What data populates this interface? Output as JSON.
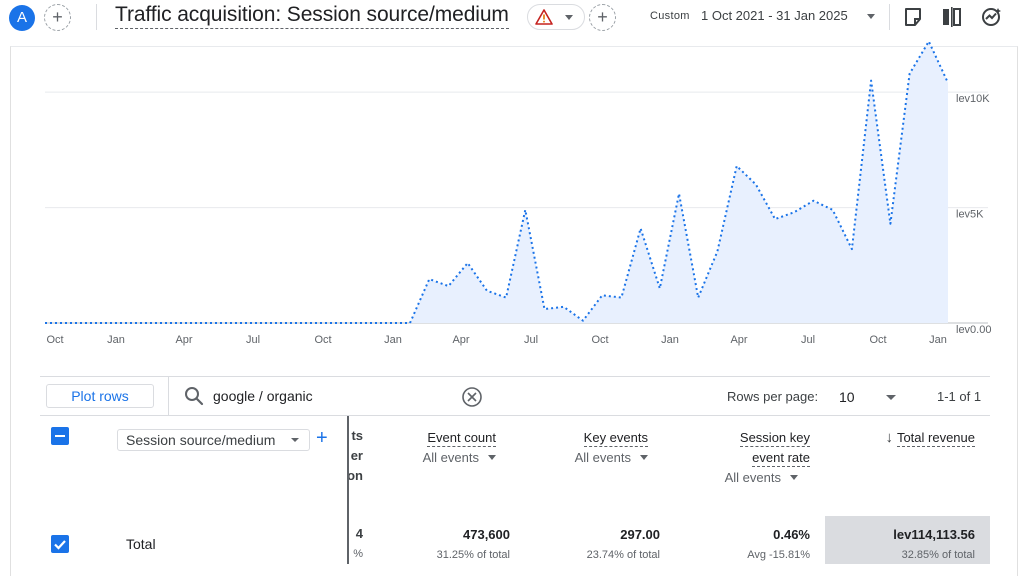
{
  "header": {
    "avatar_letter": "A",
    "add_comparison_glyph": "+",
    "title": "Traffic acquisition: Session source/medium",
    "add_glyph": "+",
    "date_mode": "Custom",
    "date_range": "1 Oct 2021 - 31 Jan 2025",
    "icons": [
      "warning-icon",
      "share-icon",
      "compare-icon",
      "insights-icon"
    ]
  },
  "chart_data": {
    "type": "area",
    "y_tick_labels": [
      "lev0.00",
      "lev5K",
      "lev10K"
    ],
    "ylim": [
      0,
      12000
    ],
    "x_tick_labels": [
      "Oct",
      "Jan",
      "Apr",
      "Jul",
      "Oct",
      "Jan",
      "Apr",
      "Jul",
      "Oct",
      "Jan",
      "Apr",
      "Jul",
      "Oct",
      "Jan"
    ],
    "series": [
      {
        "line_color": "#1a73e8",
        "fill_color": "#e8f0fe",
        "values": [
          0,
          0,
          0,
          0,
          0,
          0,
          0,
          0,
          0,
          0,
          0,
          0,
          0,
          0,
          0,
          0,
          0,
          0,
          0,
          0,
          1900,
          1600,
          2600,
          1400,
          1100,
          4900,
          600,
          700,
          100,
          1200,
          1100,
          4100,
          1500,
          5600,
          1100,
          3100,
          6800,
          6000,
          4500,
          4800,
          5300,
          4900,
          3200,
          10500,
          4300,
          10800,
          12200,
          10400
        ]
      }
    ]
  },
  "toolbar": {
    "plot_rows_label": "Plot rows",
    "search_value": "google / organic",
    "rows_per_page_label": "Rows per page:",
    "rows_per_page_value": "10",
    "pagination": "1-1 of 1"
  },
  "table": {
    "dimension": "Session source/medium",
    "add_dimension_glyph": "+",
    "clipped_header_fragments": [
      "ts",
      "er",
      "on"
    ],
    "clipped_values": [
      "4",
      "%"
    ],
    "columns": [
      {
        "title": "Event count",
        "sub": "All events"
      },
      {
        "title": "Key events",
        "sub": "All events"
      },
      {
        "title_line1": "Session key",
        "title_line2": "event rate",
        "sub": "All events"
      },
      {
        "title": "Total revenue",
        "sort_glyph": "↓"
      }
    ],
    "total_row": {
      "label": "Total",
      "event_count": "473,600",
      "event_count_pct": "31.25% of total",
      "key_events": "297.00",
      "key_events_pct": "23.74% of total",
      "session_key_event_rate": "0.46%",
      "session_key_event_rate_pct": "Avg -15.81%",
      "total_revenue": "lev114,113.56",
      "total_revenue_pct": "32.85% of total"
    }
  }
}
